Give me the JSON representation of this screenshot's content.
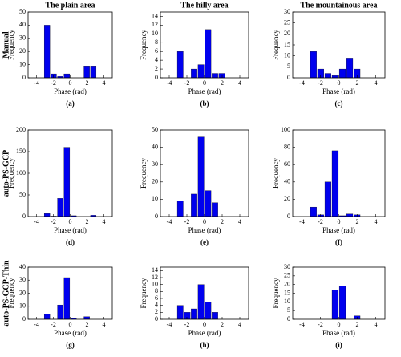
{
  "column_titles": [
    "The plain area",
    "The hilly area",
    "The mountainous area"
  ],
  "row_titles": [
    "Manual",
    "auto-PS-GCP",
    "auto-PS-GCP-Thin"
  ],
  "chart_data": [
    {
      "type": "histogram",
      "caption": "(a)",
      "xlabel": "Phase (rad)",
      "ylabel": "Frequency",
      "color": "#0000ee",
      "bins": [
        -3.14,
        -2.36,
        -1.57,
        -0.79,
        0,
        0.79,
        1.57,
        2.36,
        3.14
      ],
      "values": [
        40,
        3,
        1,
        3,
        0,
        0,
        9,
        9
      ],
      "xlim": [
        -5,
        5
      ],
      "xticks": [
        -4,
        -2,
        0,
        2,
        4
      ],
      "ylim": [
        0,
        50
      ],
      "yticks": [
        0,
        10,
        20,
        30,
        40,
        50
      ]
    },
    {
      "type": "histogram",
      "caption": "(b)",
      "xlabel": "Phase (rad)",
      "ylabel": "Frequency",
      "color": "#0000ee",
      "bins": [
        -3.14,
        -2.36,
        -1.57,
        -0.79,
        0,
        0.79,
        1.57,
        2.36,
        3.14
      ],
      "values": [
        6,
        0,
        2,
        3,
        11,
        1,
        1,
        0
      ],
      "xlim": [
        -5,
        5
      ],
      "xticks": [
        -4,
        -2,
        0,
        2,
        4
      ],
      "ylim": [
        0,
        15
      ],
      "yticks": [
        0,
        2,
        4,
        6,
        8,
        10,
        12,
        14
      ]
    },
    {
      "type": "histogram",
      "caption": "(c)",
      "xlabel": "Phase (rad)",
      "ylabel": "Frequency",
      "color": "#0000ee",
      "bins": [
        -3.14,
        -2.36,
        -1.57,
        -0.79,
        0,
        0.79,
        1.57,
        2.36,
        3.14
      ],
      "values": [
        12,
        4,
        2,
        1,
        4,
        9,
        4,
        0
      ],
      "xlim": [
        -5,
        5
      ],
      "xticks": [
        -4,
        -2,
        0,
        2,
        4
      ],
      "ylim": [
        0,
        30
      ],
      "yticks": [
        0,
        5,
        10,
        15,
        20,
        25,
        30
      ]
    },
    {
      "type": "histogram",
      "caption": "(d)",
      "xlabel": "Phase (rad)",
      "ylabel": "Frequency",
      "color": "#0000ee",
      "bins": [
        -3.14,
        -2.36,
        -1.57,
        -0.79,
        0,
        0.79,
        1.57,
        2.36,
        3.14
      ],
      "values": [
        7,
        1,
        42,
        160,
        2,
        0,
        0,
        3
      ],
      "xlim": [
        -5,
        5
      ],
      "xticks": [
        -4,
        -2,
        0,
        2,
        4
      ],
      "ylim": [
        0,
        200
      ],
      "yticks": [
        0,
        50,
        100,
        150,
        200
      ]
    },
    {
      "type": "histogram",
      "caption": "(e)",
      "xlabel": "Phase (rad)",
      "ylabel": "Frequency",
      "color": "#0000ee",
      "bins": [
        -3.14,
        -2.36,
        -1.57,
        -0.79,
        0,
        0.79,
        1.57,
        2.36,
        3.14
      ],
      "values": [
        9,
        0,
        13,
        46,
        15,
        8,
        0,
        0
      ],
      "xlim": [
        -5,
        5
      ],
      "xticks": [
        -4,
        -2,
        0,
        2,
        4
      ],
      "ylim": [
        0,
        50
      ],
      "yticks": [
        0,
        10,
        20,
        30,
        40,
        50
      ]
    },
    {
      "type": "histogram",
      "caption": "(f)",
      "xlabel": "Phase (rad)",
      "ylabel": "Frequency",
      "color": "#0000ee",
      "bins": [
        -3.14,
        -2.36,
        -1.57,
        -0.79,
        0,
        0.79,
        1.57,
        2.36,
        3.14
      ],
      "values": [
        11,
        2,
        40,
        76,
        1,
        3,
        2,
        0
      ],
      "xlim": [
        -5,
        5
      ],
      "xticks": [
        -4,
        -2,
        0,
        2,
        4
      ],
      "ylim": [
        0,
        100
      ],
      "yticks": [
        0,
        20,
        40,
        60,
        80,
        100
      ]
    },
    {
      "type": "histogram",
      "caption": "(g)",
      "xlabel": "Phase (rad)",
      "ylabel": "Frequency",
      "color": "#0000ee",
      "bins": [
        -3.14,
        -2.36,
        -1.57,
        -0.79,
        0,
        0.79,
        1.57,
        2.36,
        3.14
      ],
      "values": [
        4,
        0,
        11,
        32,
        1,
        0,
        2,
        0
      ],
      "xlim": [
        -5,
        5
      ],
      "xticks": [
        -4,
        -2,
        0,
        2,
        4
      ],
      "ylim": [
        0,
        40
      ],
      "yticks": [
        0,
        10,
        20,
        30,
        40
      ]
    },
    {
      "type": "histogram",
      "caption": "(h)",
      "xlabel": "Phase (rad)",
      "ylabel": "Frequency",
      "color": "#0000ee",
      "bins": [
        -3.14,
        -2.36,
        -1.57,
        -0.79,
        0,
        0.79,
        1.57,
        2.36,
        3.14
      ],
      "values": [
        4,
        2,
        3,
        10,
        5,
        2,
        0,
        0
      ],
      "xlim": [
        -5,
        5
      ],
      "xticks": [
        -4,
        -2,
        0,
        2,
        4
      ],
      "ylim": [
        0,
        15
      ],
      "yticks": [
        0,
        2,
        4,
        6,
        8,
        10,
        12,
        14
      ]
    },
    {
      "type": "histogram",
      "caption": "(i)",
      "xlabel": "Phase (rad)",
      "ylabel": "Frequency",
      "color": "#0000ee",
      "bins": [
        -3.14,
        -2.36,
        -1.57,
        -0.79,
        0,
        0.79,
        1.57,
        2.36,
        3.14
      ],
      "values": [
        0,
        0,
        0,
        17,
        19,
        0,
        2,
        0
      ],
      "xlim": [
        -5,
        5
      ],
      "xticks": [
        -4,
        -2,
        0,
        2,
        4
      ],
      "ylim": [
        0,
        30
      ],
      "yticks": [
        0,
        5,
        10,
        15,
        20,
        25,
        30
      ]
    }
  ]
}
